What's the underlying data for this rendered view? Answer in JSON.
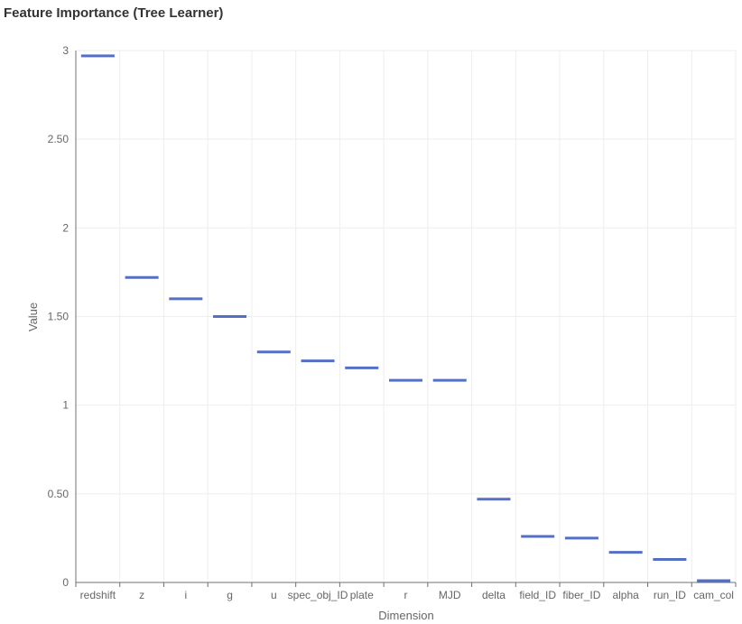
{
  "chart_data": {
    "type": "line",
    "mark": "horizontal-tick",
    "title": "Feature Importance (Tree Learner)",
    "xlabel": "Dimension",
    "ylabel": "Value",
    "categories": [
      "redshift",
      "z",
      "i",
      "g",
      "u",
      "spec_obj_ID",
      "plate",
      "r",
      "MJD",
      "delta",
      "field_ID",
      "fiber_ID",
      "alpha",
      "run_ID",
      "cam_col"
    ],
    "values": [
      2.97,
      1.72,
      1.6,
      1.5,
      1.3,
      1.25,
      1.21,
      1.14,
      1.14,
      0.47,
      0.26,
      0.25,
      0.17,
      0.13,
      0.01
    ],
    "ylim": [
      0,
      3
    ],
    "y_ticks": [
      {
        "value": 0,
        "label": "0"
      },
      {
        "value": 0.5,
        "label": "0.50"
      },
      {
        "value": 1,
        "label": "1"
      },
      {
        "value": 1.5,
        "label": "1.50"
      },
      {
        "value": 2,
        "label": "2"
      },
      {
        "value": 2.5,
        "label": "2.50"
      },
      {
        "value": 3,
        "label": "3"
      }
    ],
    "grid": true,
    "color": "#5470c6"
  }
}
